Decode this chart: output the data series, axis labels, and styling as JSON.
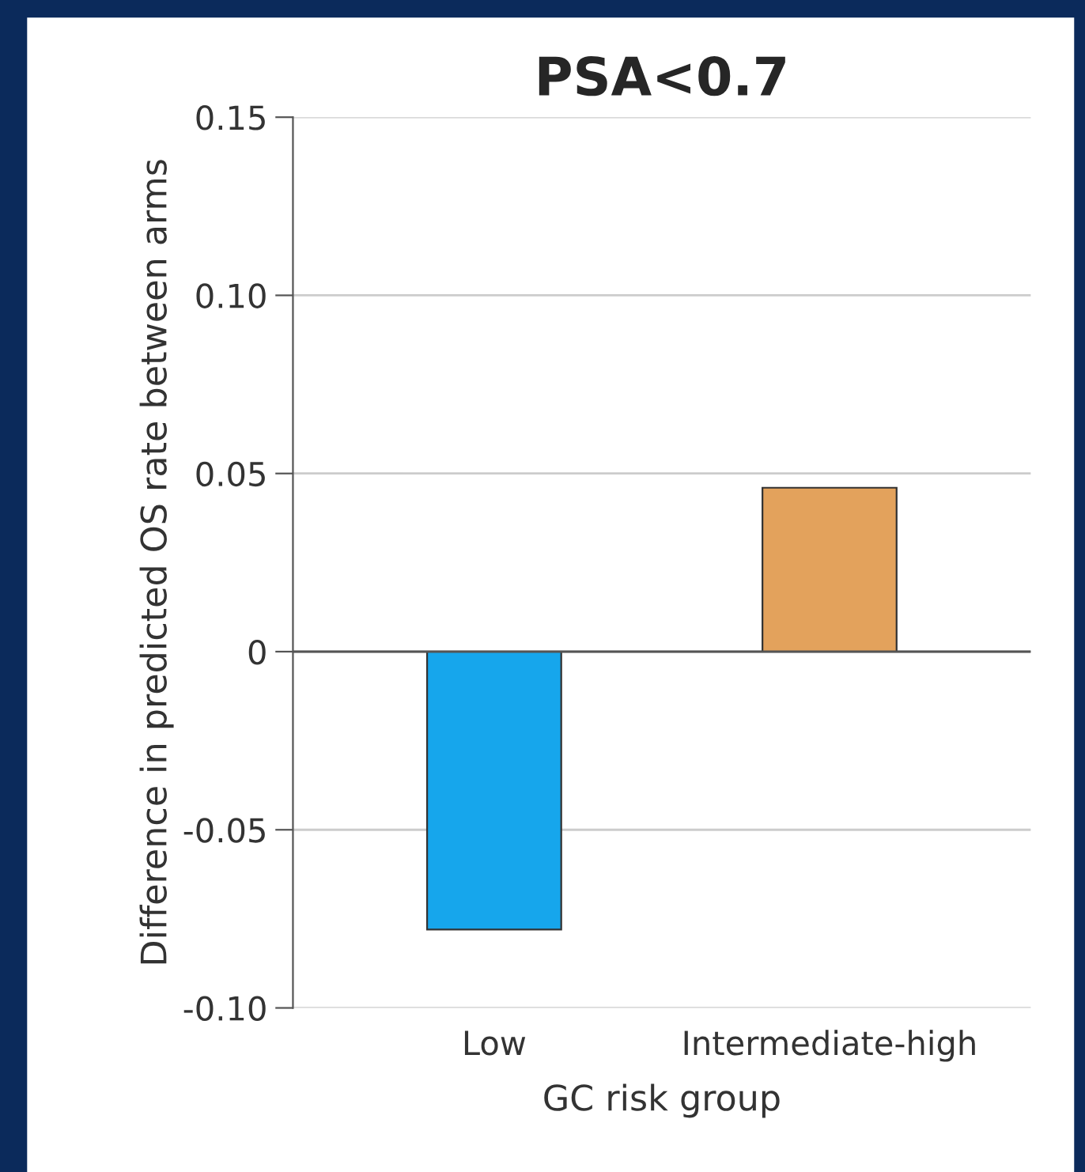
{
  "chart_data": {
    "type": "bar",
    "title": "PSA<0.7",
    "xlabel": "GC risk group",
    "ylabel": "Difference in predicted OS rate between arms",
    "categories": [
      "Low",
      "Intermediate-high"
    ],
    "values": [
      -0.078,
      0.046
    ],
    "colors": [
      "#16a6ec",
      "#e3a25c"
    ],
    "ylim": [
      -0.1,
      0.15
    ],
    "yticks": [
      {
        "value": -0.1,
        "label": "-0.10"
      },
      {
        "value": -0.05,
        "label": "-0.05"
      },
      0,
      0.05,
      {
        "value": 0.1,
        "label": "0.10"
      },
      0.15
    ],
    "grid": "y",
    "legend": false
  }
}
